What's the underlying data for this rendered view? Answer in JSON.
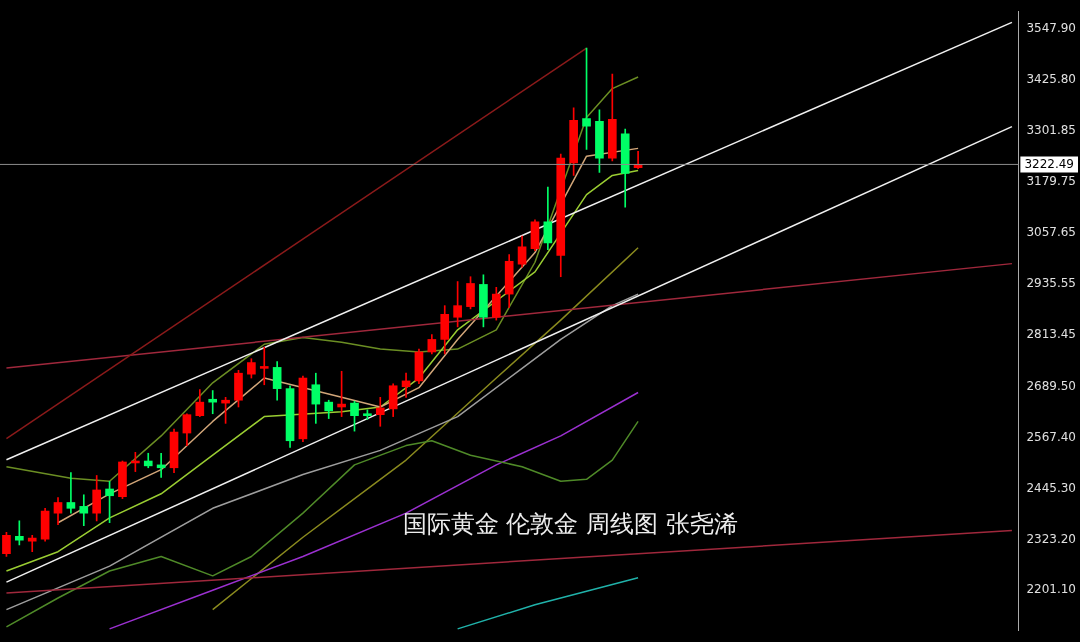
{
  "chart_data": {
    "type": "candlestick",
    "categories": [
      null,
      null,
      null,
      null,
      null,
      null,
      null,
      null,
      null,
      null,
      null,
      null,
      null,
      null,
      null,
      null,
      null,
      null,
      null,
      null,
      null,
      null,
      null,
      null,
      null,
      null,
      null,
      null,
      null,
      null,
      null,
      null,
      null,
      null,
      null,
      null,
      null,
      null,
      null,
      null,
      null,
      null,
      null,
      null,
      null,
      null,
      null,
      null,
      null,
      null,
      null,
      null,
      null,
      null,
      null,
      null,
      null,
      null,
      null,
      null,
      null,
      null,
      null,
      null,
      null,
      null,
      null,
      null,
      null,
      null,
      null,
      null,
      null,
      null,
      null,
      null,
      null,
      null,
      null
    ],
    "ohlc": [
      [
        2289.1,
        2340.0,
        2282.2,
        2333.1
      ],
      [
        2330.7,
        2367.8,
        2310.0,
        2321.5
      ],
      [
        2319.2,
        2333.1,
        2293.7,
        2326.1
      ],
      [
        2323.8,
        2397.8,
        2319.2,
        2390.9
      ],
      [
        2386.3,
        2423.3,
        2358.5,
        2411.7
      ],
      [
        2411.7,
        2483.5,
        2386.3,
        2397.8
      ],
      [
        2402.4,
        2430.2,
        2356.2,
        2386.3
      ],
      [
        2386.3,
        2476.5,
        2367.8,
        2441.8
      ],
      [
        2444.1,
        2462.6,
        2363.1,
        2427.9
      ],
      [
        2425.6,
        2511.2,
        2421.0,
        2508.9
      ],
      [
        2506.6,
        2532.1,
        2485.8,
        2511.2
      ],
      [
        2511.2,
        2529.8,
        2495.0,
        2499.6
      ],
      [
        2501.9,
        2529.8,
        2471.9,
        2495.0
      ],
      [
        2495.0,
        2587.6,
        2483.5,
        2580.6
      ],
      [
        2578.3,
        2624.6,
        2548.2,
        2622.3
      ],
      [
        2620.0,
        2682.5,
        2617.7,
        2652.4
      ],
      [
        2659.3,
        2680.2,
        2624.6,
        2652.4
      ],
      [
        2650.1,
        2664.0,
        2601.5,
        2657.0
      ],
      [
        2657.0,
        2728.7,
        2640.8,
        2721.8
      ],
      [
        2719.5,
        2756.5,
        2710.2,
        2747.3
      ],
      [
        2733.4,
        2784.3,
        2694.1,
        2738.0
      ],
      [
        2735.7,
        2749.6,
        2657.0,
        2684.8
      ],
      [
        2684.8,
        2691.7,
        2543.6,
        2559.8
      ],
      [
        2564.4,
        2714.9,
        2557.5,
        2710.2
      ],
      [
        2694.1,
        2721.8,
        2601.5,
        2647.7
      ],
      [
        2652.4,
        2657.0,
        2613.0,
        2631.5
      ],
      [
        2640.8,
        2726.4,
        2617.7,
        2647.7
      ],
      [
        2650.1,
        2654.7,
        2582.9,
        2620.0
      ],
      [
        2624.6,
        2633.8,
        2610.7,
        2620.0
      ],
      [
        2622.3,
        2664.0,
        2594.5,
        2638.5
      ],
      [
        2636.2,
        2696.4,
        2617.7,
        2691.7
      ],
      [
        2689.4,
        2721.8,
        2664.0,
        2703.3
      ],
      [
        2703.3,
        2779.7,
        2696.4,
        2772.7
      ],
      [
        2772.7,
        2814.4,
        2768.1,
        2802.8
      ],
      [
        2802.8,
        2883.8,
        2768.1,
        2863.0
      ],
      [
        2856.0,
        2941.6,
        2832.9,
        2883.8
      ],
      [
        2881.5,
        2953.2,
        2876.0,
        2937.0
      ],
      [
        2934.7,
        2957.8,
        2832.9,
        2856.0
      ],
      [
        2856.0,
        2927.8,
        2849.1,
        2911.5
      ],
      [
        2911.5,
        3006.4,
        2879.2,
        2990.2
      ],
      [
        2983.3,
        3050.4,
        2976.3,
        3024.9
      ],
      [
        3020.3,
        3089.7,
        3015.7,
        3085.1
      ],
      [
        3085.1,
        3168.4,
        3018.0,
        3034.2
      ],
      [
        3004.1,
        3247.1,
        2953.2,
        3237.8
      ],
      [
        3226.3,
        3358.2,
        3196.2,
        3328.1
      ],
      [
        3332.7,
        3501.6,
        3258.7,
        3314.2
      ],
      [
        3325.8,
        3353.5,
        3203.1,
        3237.8
      ],
      [
        3237.8,
        3439.2,
        3230.9,
        3330.4
      ],
      [
        3295.7,
        3307.3,
        3119.8,
        3200.8
      ],
      [
        3214.7,
        3254.0,
        3212.4,
        3222.49
      ],
      null,
      null,
      null,
      null,
      null,
      null,
      null,
      null,
      null,
      null,
      null,
      null,
      null,
      null,
      null,
      null,
      null,
      null,
      null,
      null,
      null,
      null,
      null,
      null,
      null,
      null,
      null,
      null,
      null
    ],
    "colors": [
      "#ff0000",
      "#00ff66",
      "#ff0000",
      "#ff0000",
      "#ff0000",
      "#00ff66",
      "#00ff66",
      "#ff0000",
      "#00ff66",
      "#ff0000",
      "#ff0000",
      "#00ff66",
      "#00ff66",
      "#ff0000",
      "#ff0000",
      "#ff0000",
      "#00ff66",
      "#ff0000",
      "#ff0000",
      "#ff0000",
      "#ff0000",
      "#00ff66",
      "#00ff66",
      "#ff0000",
      "#00ff66",
      "#00ff66",
      "#ff0000",
      "#00ff66",
      "#00ff66",
      "#ff0000",
      "#ff0000",
      "#ff0000",
      "#ff0000",
      "#ff0000",
      "#ff0000",
      "#ff0000",
      "#ff0000",
      "#00ff66",
      "#ff0000",
      "#ff0000",
      "#ff0000",
      "#ff0000",
      "#00ff66",
      "#ff0000",
      "#ff0000",
      "#00ff66",
      "#00ff66",
      "#ff0000",
      "#00ff66",
      "#ff0000",
      null,
      null,
      null,
      null,
      null,
      null,
      null,
      null,
      null,
      null,
      null,
      null,
      null,
      null,
      null,
      null,
      null,
      null,
      null,
      null,
      null,
      null,
      null,
      null,
      null,
      null,
      null,
      null,
      null
    ],
    "series": [
      {
        "type": "line",
        "color": "#f0f0f0",
        "values": [
          2514.2,
          null,
          null,
          null,
          null,
          null,
          null,
          null,
          null,
          null,
          null,
          null,
          null,
          null,
          null,
          null,
          null,
          null,
          null,
          null,
          null,
          null,
          null,
          null,
          null,
          null,
          null,
          null,
          null,
          null,
          null,
          null,
          null,
          null,
          null,
          null,
          null,
          null,
          null,
          null,
          null,
          null,
          null,
          null,
          null,
          null,
          null,
          null,
          null,
          null,
          null,
          null,
          null,
          null,
          null,
          null,
          null,
          null,
          null,
          null,
          null,
          null,
          null,
          null,
          null,
          null,
          null,
          null,
          null,
          null,
          null,
          null,
          null,
          null,
          null,
          null,
          null,
          null,
          3563.2
        ]
      },
      {
        "type": "line",
        "color": "#f0f0f0",
        "values": [
          2220.6,
          null,
          null,
          null,
          null,
          null,
          null,
          null,
          null,
          null,
          null,
          null,
          null,
          null,
          null,
          null,
          null,
          null,
          null,
          null,
          null,
          null,
          null,
          null,
          null,
          null,
          null,
          null,
          null,
          null,
          null,
          null,
          null,
          null,
          null,
          null,
          null,
          null,
          null,
          null,
          null,
          null,
          null,
          null,
          null,
          null,
          null,
          null,
          null,
          null,
          null,
          null,
          null,
          null,
          null,
          null,
          null,
          null,
          null,
          null,
          null,
          null,
          null,
          null,
          null,
          null,
          null,
          null,
          null,
          null,
          null,
          null,
          null,
          null,
          null,
          null,
          null,
          null,
          3313.2
        ]
      },
      {
        "type": "line",
        "color": "#8b1a1a",
        "values": [
          2564.7,
          null,
          null,
          null,
          null,
          null,
          null,
          null,
          null,
          null,
          null,
          null,
          null,
          null,
          null,
          null,
          null,
          null,
          null,
          null,
          null,
          null,
          null,
          null,
          null,
          null,
          null,
          null,
          null,
          null,
          null,
          null,
          null,
          null,
          null,
          null,
          null,
          null,
          null,
          null,
          null,
          null,
          null,
          null,
          null,
          3501.6,
          null,
          null,
          null,
          null,
          null,
          null,
          null,
          null,
          null,
          null,
          null,
          null,
          null,
          null,
          null,
          null,
          null,
          null,
          null,
          null,
          null,
          null,
          null,
          null,
          null,
          null,
          null,
          null,
          null,
          null,
          null,
          null,
          null
        ]
      },
      {
        "type": "line",
        "color": "#a0283c",
        "values": [
          2734.1,
          null,
          null,
          null,
          null,
          null,
          null,
          null,
          null,
          null,
          null,
          null,
          null,
          null,
          null,
          null,
          null,
          null,
          null,
          null,
          null,
          null,
          null,
          null,
          null,
          null,
          null,
          null,
          null,
          null,
          null,
          null,
          null,
          null,
          null,
          null,
          null,
          null,
          null,
          null,
          null,
          null,
          null,
          null,
          null,
          null,
          null,
          null,
          null,
          null,
          null,
          null,
          null,
          null,
          null,
          null,
          null,
          null,
          null,
          null,
          null,
          null,
          null,
          null,
          null,
          null,
          null,
          null,
          null,
          null,
          null,
          null,
          null,
          null,
          null,
          null,
          null,
          null,
          2984.6
        ]
      },
      {
        "type": "line",
        "color": "#a0283c",
        "values": [
          2194.6,
          null,
          null,
          null,
          null,
          null,
          null,
          null,
          null,
          null,
          null,
          null,
          null,
          null,
          null,
          null,
          null,
          null,
          null,
          null,
          null,
          null,
          null,
          null,
          null,
          null,
          null,
          null,
          null,
          null,
          null,
          null,
          null,
          null,
          null,
          null,
          null,
          null,
          null,
          null,
          null,
          null,
          null,
          null,
          null,
          null,
          null,
          null,
          null,
          null,
          null,
          null,
          null,
          null,
          null,
          null,
          null,
          null,
          null,
          null,
          null,
          null,
          null,
          null,
          null,
          null,
          null,
          null,
          null,
          null,
          null,
          null,
          null,
          null,
          null,
          null,
          null,
          null,
          2344.4
        ]
      },
      {
        "type": "line",
        "color": "#d2a679",
        "values": [
          null,
          null,
          null,
          null,
          2363.1,
          null,
          null,
          null,
          2432.5,
          null,
          null,
          null,
          2490.4,
          null,
          null,
          null,
          2606.1,
          null,
          null,
          null,
          2710.2,
          null,
          null,
          null,
          null,
          null,
          2664.0,
          null,
          null,
          2640.8,
          null,
          null,
          2687.1,
          null,
          null,
          2802.8,
          null,
          null,
          null,
          null,
          null,
          3011.0,
          null,
          null,
          null,
          3242.4,
          null,
          null,
          null,
          3261.0,
          null,
          null,
          null,
          null,
          null,
          null,
          null,
          null,
          null,
          null,
          null,
          null,
          null,
          null,
          null,
          null,
          null,
          null,
          null,
          null,
          null,
          null,
          null,
          null,
          null,
          null,
          null,
          null,
          null
        ]
      },
      {
        "type": "line",
        "color": "#9acd32",
        "values": [
          2247.4,
          null,
          null,
          null,
          2293.7,
          null,
          null,
          null,
          2374.7,
          null,
          null,
          null,
          2432.6,
          null,
          null,
          null,
          2525.1,
          null,
          null,
          null,
          2617.7,
          null,
          null,
          null,
          null,
          null,
          2629.2,
          null,
          null,
          2640.8,
          null,
          null,
          2710.2,
          null,
          null,
          2825.9,
          null,
          null,
          null,
          null,
          null,
          2964.8,
          null,
          null,
          null,
          3149.9,
          null,
          3196.2,
          null,
          3207.7,
          null,
          null,
          null,
          null,
          null,
          null,
          null,
          null,
          null,
          null,
          null,
          null,
          null,
          null,
          null,
          null,
          null,
          null,
          null,
          null,
          null,
          null,
          null,
          null,
          null,
          null,
          null,
          null,
          null
        ]
      },
      {
        "type": "line",
        "color": "#6b8e23",
        "values": [
          2497.4,
          null,
          null,
          null,
          null,
          2469.6,
          null,
          null,
          2462.6,
          null,
          null,
          null,
          2571.4,
          null,
          null,
          null,
          2698.7,
          null,
          null,
          null,
          2791.2,
          null,
          null,
          2807.4,
          null,
          null,
          2795.9,
          null,
          null,
          2779.7,
          null,
          null,
          2772.7,
          null,
          null,
          2779.7,
          null,
          null,
          2825.9,
          null,
          null,
          2987.9,
          null,
          null,
          null,
          3335.0,
          null,
          3404.4,
          null,
          3432.2,
          null,
          null,
          null,
          null,
          null,
          null,
          null,
          null,
          null,
          null,
          null,
          null,
          null,
          null,
          null,
          null,
          null,
          null,
          null,
          null,
          null,
          null,
          null,
          null,
          null,
          null,
          null,
          null,
          null
        ]
      },
      {
        "type": "line",
        "color": "#4f8a28",
        "values": [
          2113.2,
          null,
          null,
          null,
          2182.6,
          null,
          null,
          null,
          2247.4,
          null,
          null,
          null,
          2282.2,
          null,
          null,
          null,
          2235.8,
          null,
          null,
          2282.2,
          null,
          null,
          null,
          2386.3,
          null,
          null,
          null,
          2502.0,
          null,
          null,
          null,
          2548.2,
          null,
          2559.8,
          null,
          null,
          2525.1,
          null,
          null,
          null,
          2497.4,
          null,
          null,
          2462.6,
          null,
          2467.3,
          null,
          2513.5,
          null,
          2606.1,
          null,
          null,
          null,
          null,
          null,
          null,
          null,
          null,
          null,
          null,
          null,
          null,
          null,
          null,
          null,
          null,
          null,
          null,
          null,
          null,
          null,
          null,
          null,
          null,
          null,
          null,
          null,
          null,
          null
        ]
      },
      {
        "type": "line",
        "color": "#9b30d0",
        "values": [
          null,
          null,
          null,
          null,
          null,
          null,
          null,
          null,
          2108.6,
          null,
          null,
          null,
          null,
          null,
          null,
          null,
          2201.2,
          null,
          null,
          null,
          null,
          null,
          null,
          2282.2,
          null,
          null,
          null,
          null,
          null,
          null,
          null,
          2386.3,
          null,
          null,
          null,
          null,
          null,
          null,
          2502.0,
          null,
          null,
          null,
          null,
          2571.4,
          null,
          null,
          null,
          null,
          null,
          2675.5,
          null,
          null,
          null,
          null,
          null,
          null,
          null,
          null,
          null,
          null,
          null,
          null,
          null,
          null,
          null,
          null,
          null,
          null,
          null,
          null,
          null,
          null,
          null,
          null,
          null,
          null,
          null,
          null,
          null
        ]
      },
      {
        "type": "line",
        "color": "#9e9e9e",
        "values": [
          2154.9,
          null,
          null,
          null,
          null,
          null,
          null,
          null,
          2259.0,
          null,
          null,
          null,
          null,
          null,
          null,
          null,
          2397.8,
          null,
          null,
          null,
          null,
          null,
          null,
          2478.8,
          null,
          null,
          null,
          null,
          null,
          2536.7,
          null,
          null,
          null,
          null,
          null,
          2617.7,
          null,
          null,
          null,
          null,
          2733.4,
          null,
          null,
          2802.8,
          null,
          null,
          null,
          2883.8,
          null,
          2911.5,
          null,
          null,
          null,
          null,
          null,
          null,
          null,
          null,
          null,
          null,
          null,
          null,
          null,
          null,
          null,
          null,
          null,
          null,
          null,
          null,
          null,
          null,
          null,
          null,
          null,
          null,
          null,
          null,
          null
        ]
      },
      {
        "type": "line",
        "color": "#8a8a1e",
        "values": [
          null,
          null,
          null,
          null,
          null,
          null,
          null,
          null,
          null,
          null,
          null,
          null,
          null,
          null,
          null,
          null,
          2154.9,
          null,
          null,
          null,
          null,
          null,
          null,
          2328.4,
          null,
          null,
          null,
          null,
          null,
          null,
          null,
          2513.5,
          null,
          null,
          null,
          null,
          null,
          null,
          2710.2,
          null,
          null,
          null,
          null,
          2849.1,
          null,
          null,
          null,
          null,
          null,
          3022.6,
          null,
          null,
          null,
          null,
          null,
          null,
          null,
          null,
          null,
          null,
          null,
          null,
          null,
          null,
          null,
          null,
          null,
          null,
          null,
          null,
          null,
          null,
          null,
          null,
          null,
          null,
          null,
          null,
          null
        ]
      },
      {
        "type": "line",
        "color": "#20b2aa",
        "values": [
          null,
          null,
          null,
          null,
          null,
          null,
          null,
          null,
          null,
          null,
          null,
          null,
          null,
          null,
          null,
          null,
          null,
          null,
          null,
          null,
          null,
          null,
          null,
          null,
          null,
          null,
          null,
          null,
          null,
          null,
          null,
          null,
          null,
          null,
          null,
          2108.6,
          null,
          null,
          null,
          null,
          null,
          2166.4,
          null,
          null,
          null,
          null,
          null,
          null,
          null,
          2231.2,
          null,
          null,
          null,
          null,
          null,
          null,
          null,
          null,
          null,
          null,
          null,
          null,
          null,
          null,
          null,
          null,
          null,
          null,
          null,
          null,
          null,
          null,
          null,
          null,
          null,
          null,
          null,
          null,
          null
        ]
      }
    ],
    "ylim": [
      2104,
      3590
    ],
    "yticks": [
      {
        "value": 3547.9,
        "label": "3547.90"
      },
      {
        "value": 3425.8,
        "label": "3425.80"
      },
      3301.85,
      3179.75,
      3057.65,
      2935.55,
      2813.45,
      {
        "value": 2689.5,
        "label": "2689.50"
      },
      {
        "value": 2567.4,
        "label": "2567.40"
      },
      {
        "value": 2445.3,
        "label": "2445.30"
      },
      {
        "value": 2323.2,
        "label": "2323.20"
      },
      {
        "value": 2201.1,
        "label": "2201.10"
      }
    ],
    "ref_lines": [
      {
        "axis": "y",
        "value": 3222.49,
        "label": "3222.49",
        "color": "#8c8c8c"
      }
    ],
    "annotations": [
      "国际黄金 伦敦金 周线图 张尧浠"
    ],
    "tick_labels": "y",
    "grid": false,
    "legend": false
  }
}
